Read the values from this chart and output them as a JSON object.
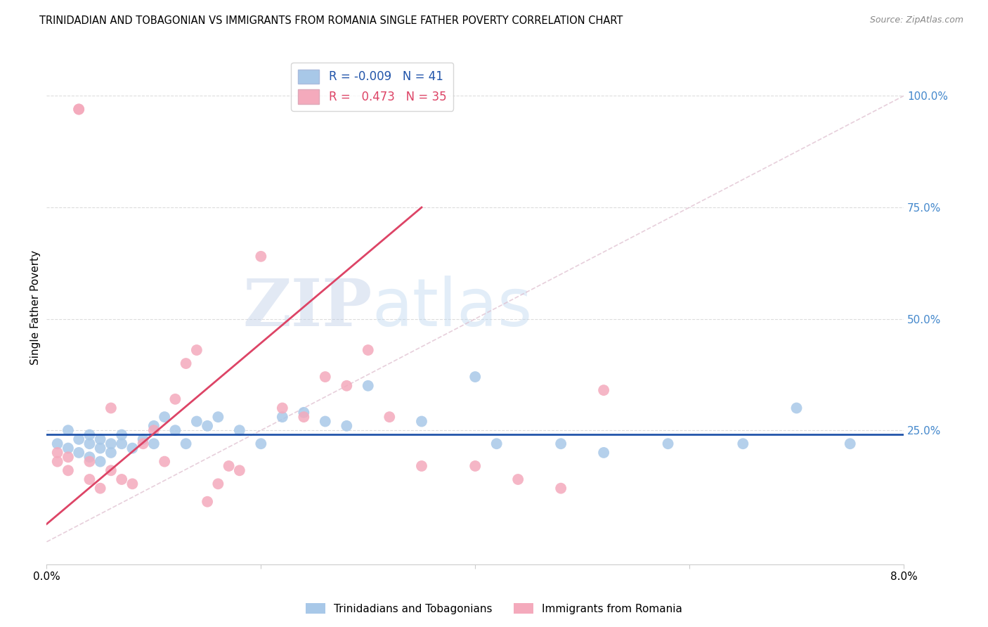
{
  "title": "TRINIDADIAN AND TOBAGONIAN VS IMMIGRANTS FROM ROMANIA SINGLE FATHER POVERTY CORRELATION CHART",
  "source": "Source: ZipAtlas.com",
  "ylabel": "Single Father Poverty",
  "xlim": [
    0.0,
    0.08
  ],
  "ylim": [
    -0.05,
    1.1
  ],
  "xticks": [
    0.0,
    0.02,
    0.04,
    0.06,
    0.08
  ],
  "xtick_labels": [
    "0.0%",
    "",
    "",
    "",
    "8.0%"
  ],
  "ytick_positions": [
    0.0,
    0.25,
    0.5,
    0.75,
    1.0
  ],
  "ytick_labels": [
    "",
    "25.0%",
    "50.0%",
    "75.0%",
    "100.0%"
  ],
  "blue_color": "#a8c8e8",
  "pink_color": "#f4aabc",
  "blue_line_color": "#2255aa",
  "pink_line_color": "#dd4466",
  "diag_color": "#ddbbcc",
  "grid_color": "#dddddd",
  "R_blue": -0.009,
  "N_blue": 41,
  "R_pink": 0.473,
  "N_pink": 35,
  "legend_label_blue": "Trinidadians and Tobagonians",
  "legend_label_pink": "Immigrants from Romania",
  "watermark_zip": "ZIP",
  "watermark_atlas": "atlas",
  "blue_scatter_x": [
    0.001,
    0.002,
    0.002,
    0.003,
    0.003,
    0.004,
    0.004,
    0.004,
    0.005,
    0.005,
    0.005,
    0.006,
    0.006,
    0.007,
    0.007,
    0.008,
    0.009,
    0.01,
    0.01,
    0.011,
    0.012,
    0.013,
    0.014,
    0.015,
    0.016,
    0.018,
    0.02,
    0.022,
    0.024,
    0.026,
    0.028,
    0.03,
    0.035,
    0.04,
    0.042,
    0.048,
    0.052,
    0.058,
    0.065,
    0.07,
    0.075
  ],
  "blue_scatter_y": [
    0.22,
    0.21,
    0.25,
    0.2,
    0.23,
    0.22,
    0.19,
    0.24,
    0.21,
    0.23,
    0.18,
    0.22,
    0.2,
    0.24,
    0.22,
    0.21,
    0.23,
    0.22,
    0.26,
    0.28,
    0.25,
    0.22,
    0.27,
    0.26,
    0.28,
    0.25,
    0.22,
    0.28,
    0.29,
    0.27,
    0.26,
    0.35,
    0.27,
    0.37,
    0.22,
    0.22,
    0.2,
    0.22,
    0.22,
    0.3,
    0.22
  ],
  "pink_scatter_x": [
    0.001,
    0.001,
    0.002,
    0.002,
    0.003,
    0.003,
    0.004,
    0.004,
    0.005,
    0.006,
    0.006,
    0.007,
    0.008,
    0.009,
    0.01,
    0.011,
    0.012,
    0.013,
    0.014,
    0.015,
    0.016,
    0.017,
    0.018,
    0.02,
    0.022,
    0.024,
    0.026,
    0.028,
    0.03,
    0.032,
    0.035,
    0.04,
    0.044,
    0.048,
    0.052
  ],
  "pink_scatter_y": [
    0.18,
    0.2,
    0.16,
    0.19,
    0.97,
    0.97,
    0.14,
    0.18,
    0.12,
    0.16,
    0.3,
    0.14,
    0.13,
    0.22,
    0.25,
    0.18,
    0.32,
    0.4,
    0.43,
    0.09,
    0.13,
    0.17,
    0.16,
    0.64,
    0.3,
    0.28,
    0.37,
    0.35,
    0.43,
    0.28,
    0.17,
    0.17,
    0.14,
    0.12,
    0.34
  ],
  "pink_trend_x0": 0.0,
  "pink_trend_y0": 0.04,
  "pink_trend_x1": 0.035,
  "pink_trend_y1": 0.75,
  "blue_trend_y": 0.232
}
